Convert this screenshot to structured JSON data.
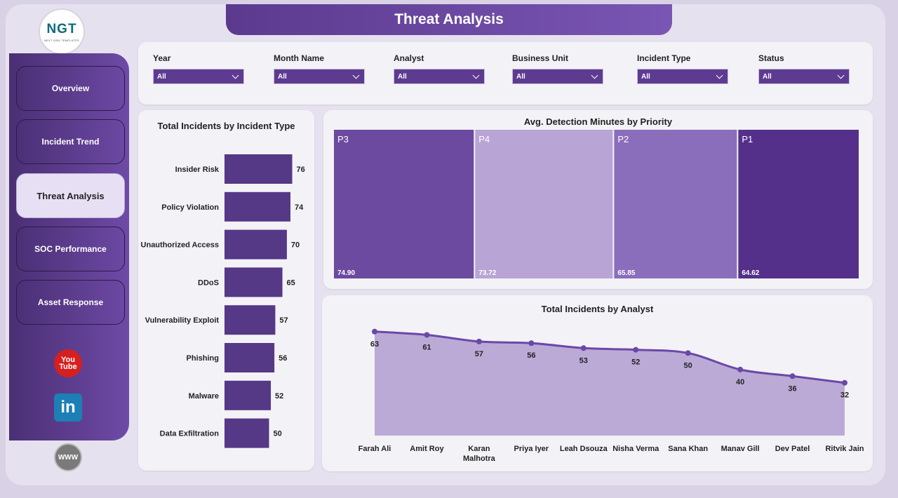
{
  "header": {
    "title": "Threat Analysis"
  },
  "logo": {
    "text": "NGT",
    "subtext": "NEXT GEN TEMPLATES"
  },
  "nav": [
    {
      "label": "Overview",
      "active": false
    },
    {
      "label": "Incident Trend",
      "active": false
    },
    {
      "label": "Threat Analysis",
      "active": true
    },
    {
      "label": "SOC Performance",
      "active": false
    },
    {
      "label": "Asset Response",
      "active": false
    }
  ],
  "social": {
    "youtube_top": "You",
    "youtube_bottom": "Tube",
    "linkedin": "in",
    "web": "WWW"
  },
  "filters": [
    {
      "label": "Year",
      "value": "All"
    },
    {
      "label": "Month Name",
      "value": "All"
    },
    {
      "label": "Analyst",
      "value": "All"
    },
    {
      "label": "Business Unit",
      "value": "All"
    },
    {
      "label": "Incident Type",
      "value": "All"
    },
    {
      "label": "Status",
      "value": "All"
    }
  ],
  "colors": {
    "dark_purple": "#553886",
    "mid_purple": "#6c4a9f",
    "light_purple": "#b8a4d5",
    "medium_purple": "#8a6ebb",
    "deep_purple": "#54308a",
    "area_fill": "#bbaad6",
    "line": "#6a48a8"
  },
  "chart_data": [
    {
      "type": "bar",
      "title": "Total Incidents by Incident Type",
      "orientation": "horizontal",
      "categories": [
        "Insider Risk",
        "Policy Violation",
        "Unauthorized Access",
        "DDoS",
        "Vulnerability Exploit",
        "Phishing",
        "Malware",
        "Data Exfiltration"
      ],
      "values": [
        76,
        74,
        70,
        65,
        57,
        56,
        52,
        50
      ],
      "xlim": [
        0,
        100
      ],
      "grid": false
    },
    {
      "type": "treemap",
      "title": "Avg. Detection Minutes by Priority",
      "categories": [
        "P3",
        "P4",
        "P2",
        "P1"
      ],
      "values": [
        74.9,
        73.72,
        65.85,
        64.62
      ],
      "labels": [
        "74.90",
        "73.72",
        "65.85",
        "64.62"
      ]
    },
    {
      "type": "area",
      "title": "Total Incidents by Analyst",
      "categories": [
        "Farah Ali",
        "Amit Roy",
        "Karan Malhotra",
        "Priya Iyer",
        "Leah Dsouza",
        "Nisha Verma",
        "Sana Khan",
        "Manav Gill",
        "Dev Patel",
        "Ritvik Jain"
      ],
      "values": [
        63,
        61,
        57,
        56,
        53,
        52,
        50,
        40,
        36,
        32
      ],
      "ylim": [
        0,
        68
      ],
      "grid": false
    }
  ]
}
